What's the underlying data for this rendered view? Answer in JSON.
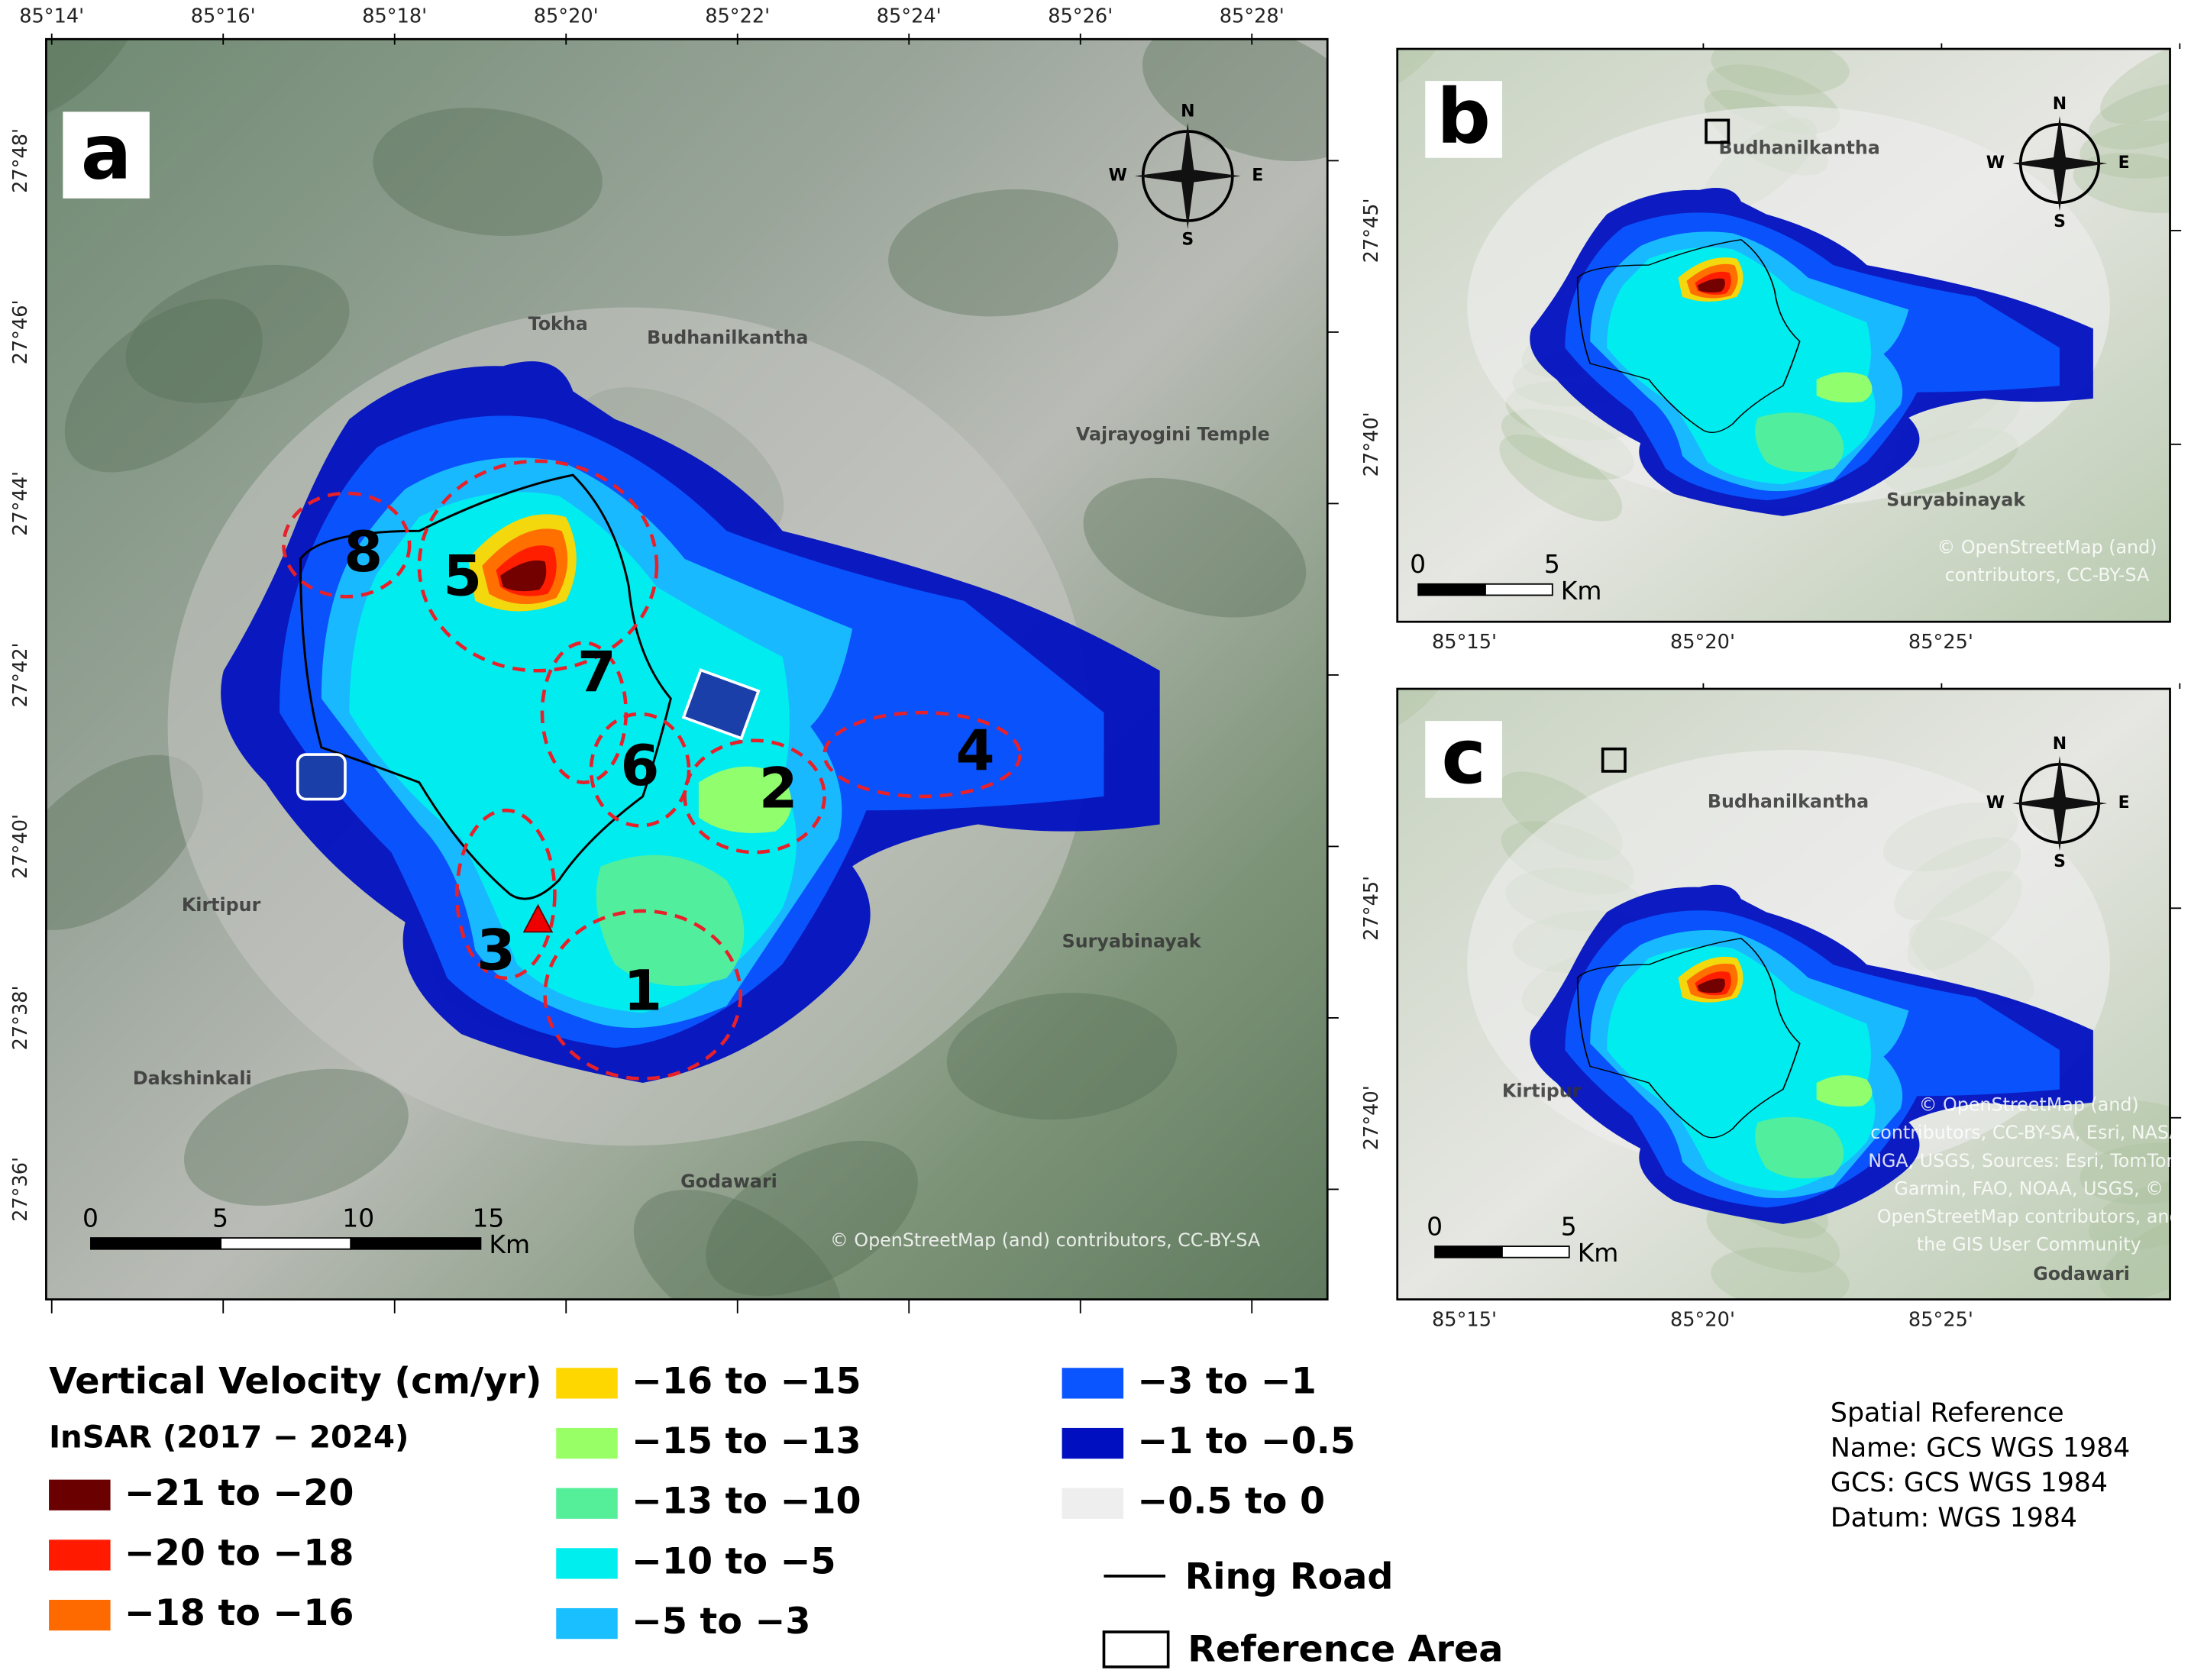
{
  "panels": [
    {
      "label": "a",
      "lon_ticks": [
        "85°14'",
        "85°16'",
        "85°18'",
        "85°20'",
        "85°22'",
        "85°24'",
        "85°26'",
        "85°28'"
      ],
      "lat_ticks": [
        "27°48'",
        "27°46'",
        "27°44'",
        "27°42'",
        "27°40'",
        "27°38'",
        "27°36'"
      ],
      "zones": [
        "1",
        "2",
        "3",
        "4",
        "5",
        "6",
        "7",
        "8"
      ],
      "compass": [
        "N",
        "E",
        "S",
        "W"
      ],
      "scale": [
        "0",
        "5",
        "10",
        "15",
        "Km"
      ],
      "places": [
        "Budhanilkantha",
        "Tokha",
        "Vajrayogini Temple",
        "Suryabinayak",
        "Godawari",
        "Dakshinkali",
        "Kirtipur"
      ],
      "attribution": [
        "© OpenStreetMap (and) contributors, CC-BY-SA"
      ]
    },
    {
      "label": "b",
      "lon_ticks": [
        "85°15'",
        "85°20'",
        "85°25'"
      ],
      "lat_ticks": [
        "27°45'",
        "27°40'"
      ],
      "compass": [
        "N",
        "E",
        "S",
        "W"
      ],
      "scale": [
        "0",
        "5",
        "Km"
      ],
      "places": [
        "Budhanilkantha",
        "Suryabinayak"
      ],
      "attribution": [
        "© OpenStreetMap (and)",
        "contributors, CC-BY-SA"
      ]
    },
    {
      "label": "c",
      "lon_ticks": [
        "85°15'",
        "85°20'",
        "85°25'"
      ],
      "lat_ticks": [
        "27°45'",
        "27°40'"
      ],
      "compass": [
        "N",
        "E",
        "S",
        "W"
      ],
      "scale": [
        "0",
        "5",
        "Km"
      ],
      "places": [
        "Budhanilkantha",
        "Kirtipur",
        "Godawari"
      ],
      "attribution": [
        "© OpenStreetMap (and)",
        "contributors, CC-BY-SA, Esri, NASA,",
        "NGA, USGS, Sources: Esri, TomTom,",
        "Garmin, FAO, NOAA, USGS, ©",
        "OpenStreetMap contributors, and",
        "the GIS User Community"
      ]
    }
  ],
  "legend": {
    "title": "Vertical Velocity (cm/yr)",
    "subtitle": "InSAR (2017 − 2024)",
    "classes": [
      {
        "label": "−21 to −20",
        "color": "#6b0000"
      },
      {
        "label": "−20 to −18",
        "color": "#ff1a00"
      },
      {
        "label": "−18 to −16",
        "color": "#ff6a00"
      },
      {
        "label": "−16 to −15",
        "color": "#ffd700"
      },
      {
        "label": "−15 to −13",
        "color": "#99ff66"
      },
      {
        "label": "−13 to −10",
        "color": "#55ee99"
      },
      {
        "label": "−10 to −5",
        "color": "#00eeee"
      },
      {
        "label": "−5 to −3",
        "color": "#19bfff"
      },
      {
        "label": "−3 to −1",
        "color": "#0a55ff"
      },
      {
        "label": "−1 to −0.5",
        "color": "#0010c0"
      },
      {
        "label": "−0.5 to 0",
        "color": "#eeeeee"
      }
    ],
    "ring_road": "Ring Road",
    "reference_area": "Reference Area"
  },
  "spatial_reference": [
    "Spatial Reference",
    "Name: GCS WGS 1984",
    "GCS: GCS WGS 1984",
    "Datum: WGS 1984"
  ]
}
